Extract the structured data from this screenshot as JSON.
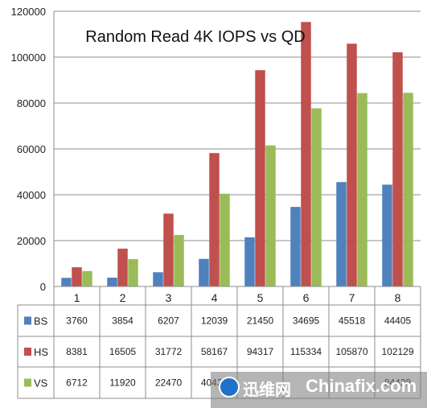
{
  "chart_data": {
    "type": "bar",
    "title": "Random Read 4K IOPS vs QD",
    "categories": [
      "1",
      "2",
      "3",
      "4",
      "5",
      "6",
      "7",
      "8"
    ],
    "ylim": [
      0,
      120000
    ],
    "yticks": [
      "0",
      "20000",
      "40000",
      "60000",
      "80000",
      "100000",
      "120000"
    ],
    "grid": true,
    "legend": "data-table-below",
    "series": [
      {
        "name": "BS",
        "color": "#4f81bd",
        "values": [
          3760,
          3854,
          6207,
          12039,
          21450,
          34695,
          45518,
          44405
        ],
        "labels": [
          "3760",
          "3854",
          "6207",
          "12039",
          "21450",
          "34695",
          "45518",
          "44405"
        ]
      },
      {
        "name": "HS",
        "color": "#c0504d",
        "values": [
          8381,
          16505,
          31772,
          58167,
          94317,
          115334,
          105870,
          102129
        ],
        "labels": [
          "8381",
          "16505",
          "31772",
          "58167",
          "94317",
          "115334",
          "105870",
          "102129"
        ]
      },
      {
        "name": "VS",
        "color": "#9bbb59",
        "values": [
          6712,
          11920,
          22470,
          40435,
          61500,
          77700,
          84300,
          84428
        ],
        "labels": [
          "6712",
          "11920",
          "22470",
          "40435",
          "",
          "",
          "",
          "84428"
        ]
      }
    ]
  },
  "watermark": {
    "chinese": "迅维网",
    "english": "Chinafix.com"
  }
}
